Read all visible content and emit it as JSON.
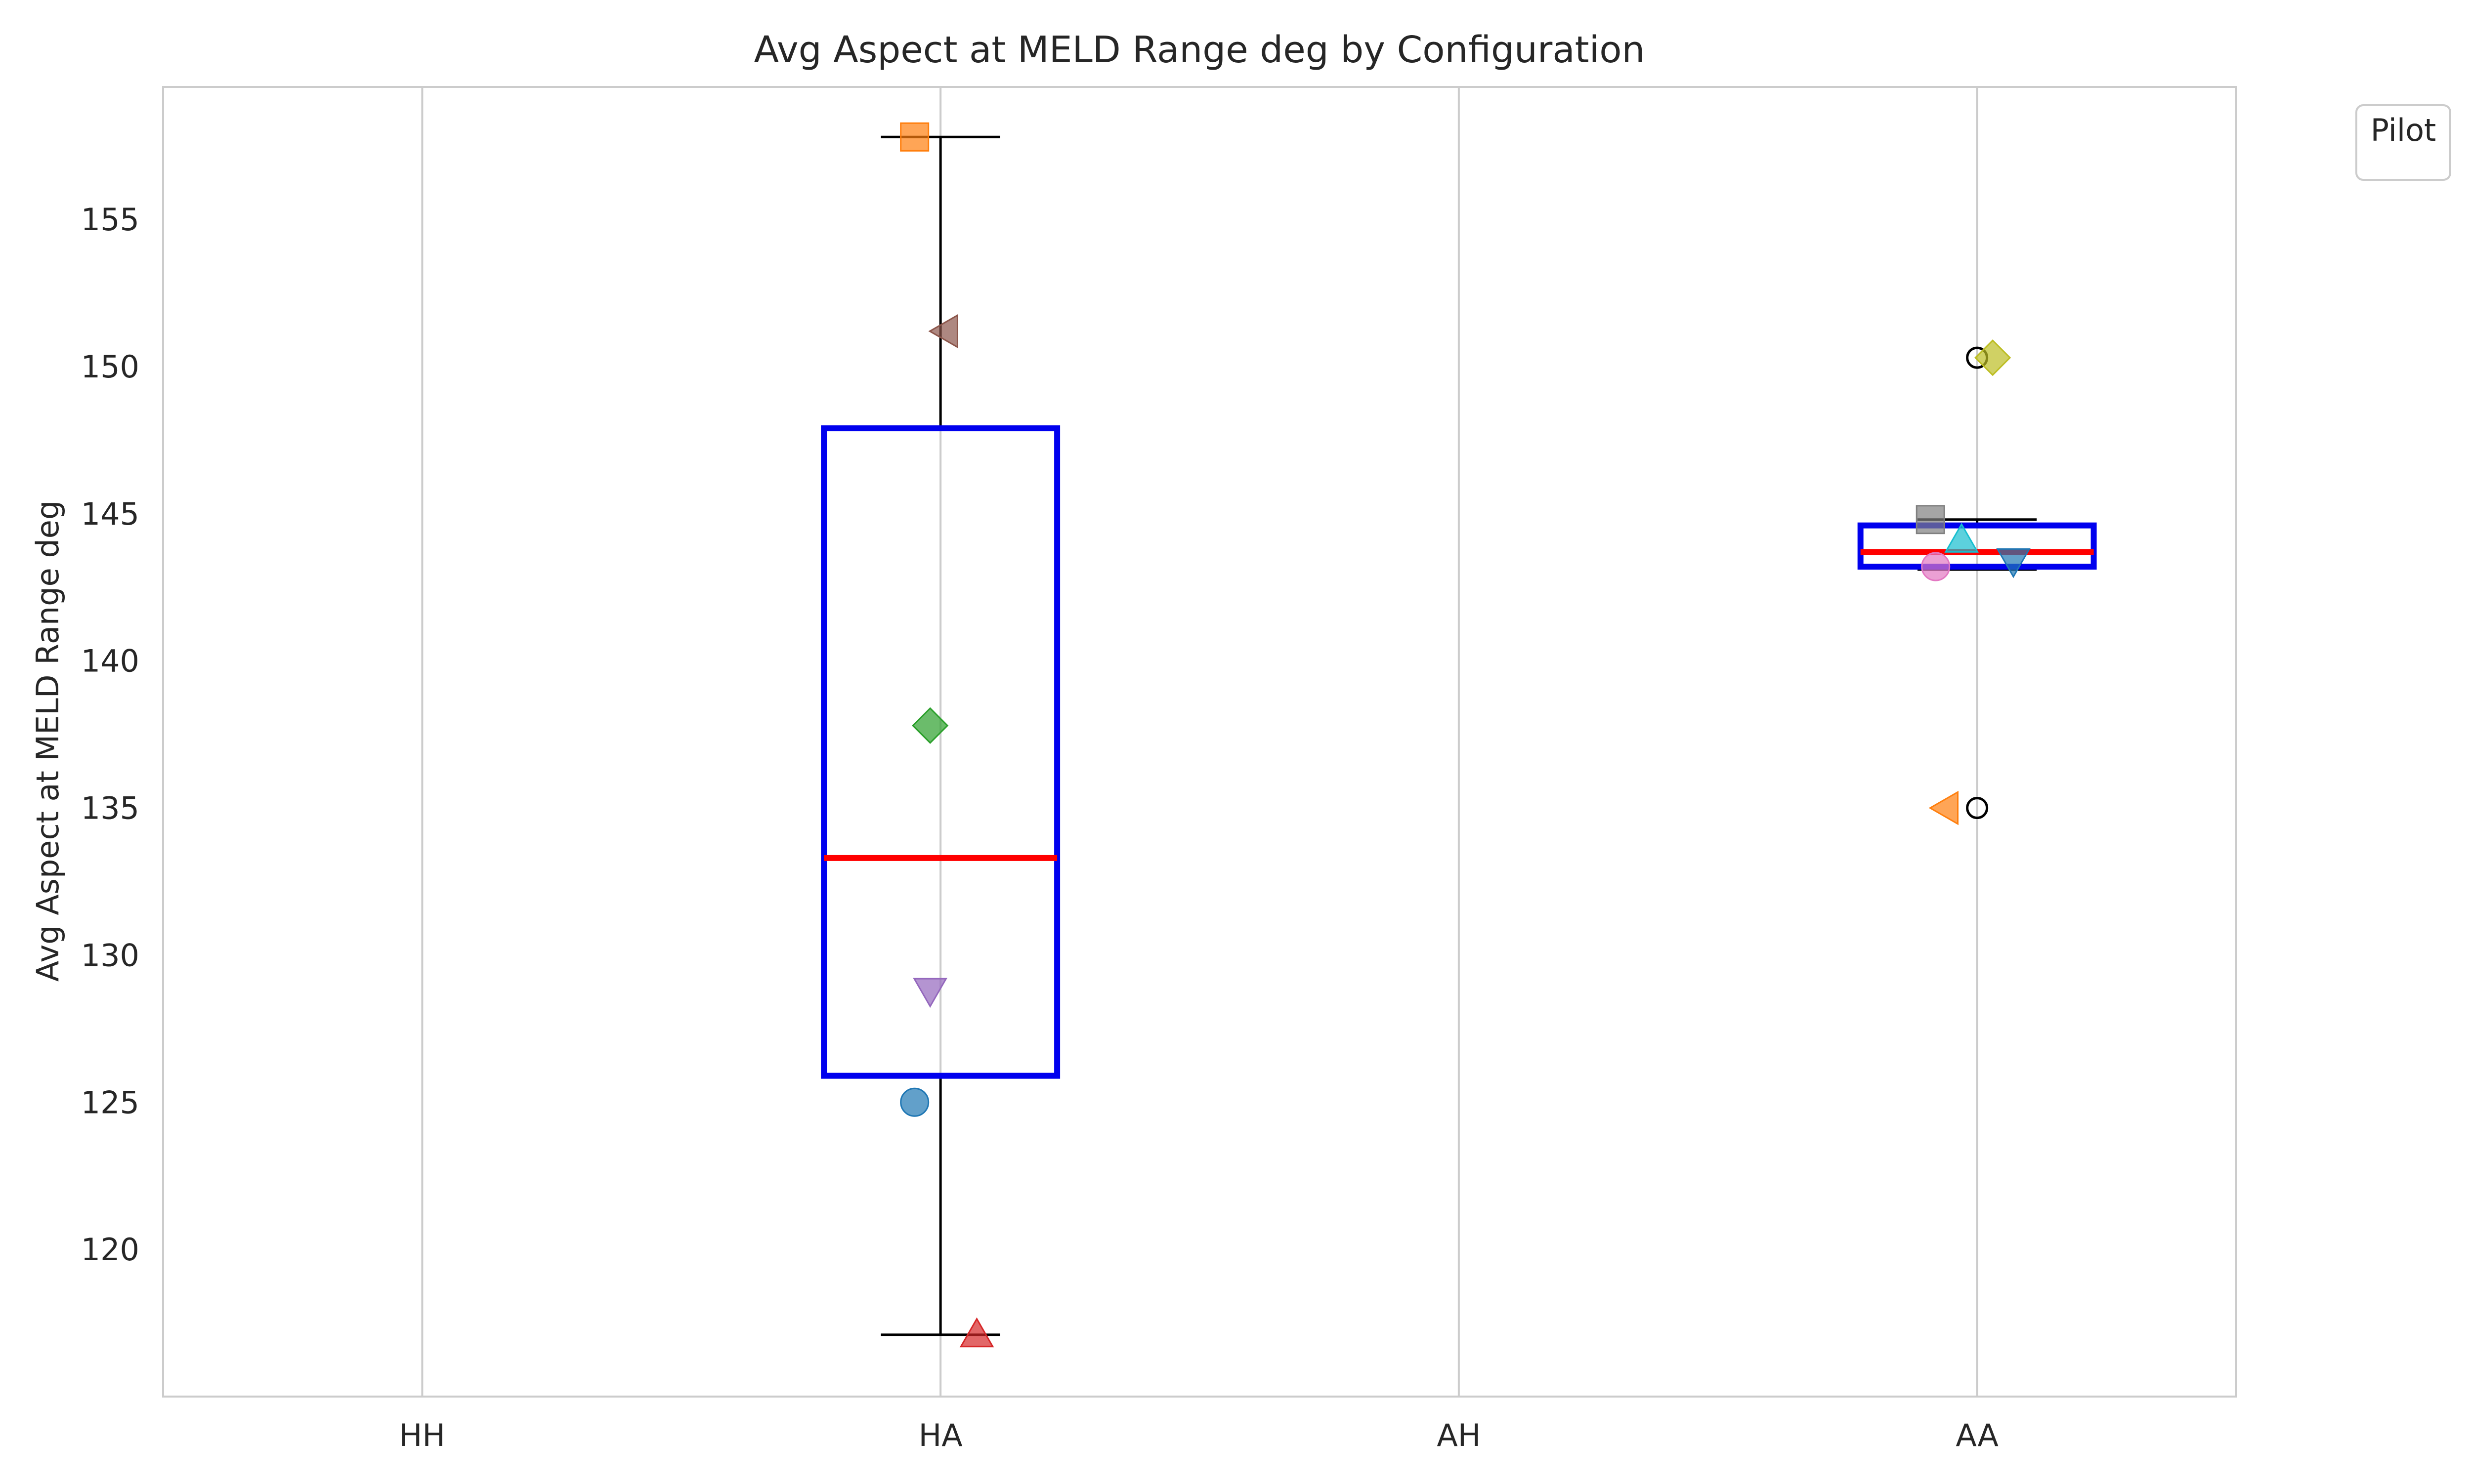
{
  "chart_data": {
    "type": "box",
    "title": "Avg Aspect at MELD Range deg by Configuration",
    "xlabel": "",
    "ylabel": "Avg Aspect at MELD Range deg",
    "categories": [
      "HH",
      "HA",
      "AH",
      "AA"
    ],
    "ylim": [
      115,
      159.5
    ],
    "yticks": [
      120,
      125,
      130,
      135,
      140,
      145,
      150,
      155
    ],
    "grid": "vertical",
    "legend": {
      "title": "Pilot",
      "placement": "top-right-outside",
      "entries": []
    },
    "box_style": {
      "box_color": "#0000ee",
      "median_color": "#ff0000",
      "whisker_color": "#000000"
    },
    "boxes": [
      {
        "category": "HA",
        "whisker_low": 117.1,
        "q1": 125.9,
        "median": 133.3,
        "q3": 147.9,
        "whisker_high": 157.8,
        "outliers": []
      },
      {
        "category": "AA",
        "whisker_low": 143.1,
        "q1": 143.2,
        "median": 143.7,
        "q3": 144.6,
        "whisker_high": 144.8,
        "outliers": [
          150.3,
          135.0
        ]
      }
    ],
    "points": [
      {
        "category": "HA",
        "offset": -0.05,
        "value": 157.8,
        "marker": "square",
        "color": "#ff7f0e"
      },
      {
        "category": "HA",
        "offset": 0.01,
        "value": 151.2,
        "marker": "triangle-left",
        "color": "#8c564b"
      },
      {
        "category": "HA",
        "offset": -0.02,
        "value": 137.8,
        "marker": "diamond",
        "color": "#2ca02c"
      },
      {
        "category": "HA",
        "offset": -0.02,
        "value": 128.8,
        "marker": "triangle-down",
        "color": "#9467bd"
      },
      {
        "category": "HA",
        "offset": -0.05,
        "value": 125.0,
        "marker": "circle",
        "color": "#1f77b4"
      },
      {
        "category": "HA",
        "offset": 0.07,
        "value": 117.1,
        "marker": "triangle-up",
        "color": "#d62728"
      },
      {
        "category": "AA",
        "offset": 0.03,
        "value": 150.3,
        "marker": "diamond",
        "color": "#bcbd22"
      },
      {
        "category": "AA",
        "offset": -0.09,
        "value": 144.8,
        "marker": "square",
        "color": "#7f7f7f"
      },
      {
        "category": "AA",
        "offset": -0.03,
        "value": 144.1,
        "marker": "triangle-up",
        "color": "#17becf"
      },
      {
        "category": "AA",
        "offset": 0.07,
        "value": 143.4,
        "marker": "triangle-down",
        "color": "#1f77b4"
      },
      {
        "category": "AA",
        "offset": -0.08,
        "value": 143.2,
        "marker": "circle",
        "color": "#e377c2"
      },
      {
        "category": "AA",
        "offset": -0.06,
        "value": 135.0,
        "marker": "triangle-left",
        "color": "#ff7f0e"
      }
    ]
  }
}
